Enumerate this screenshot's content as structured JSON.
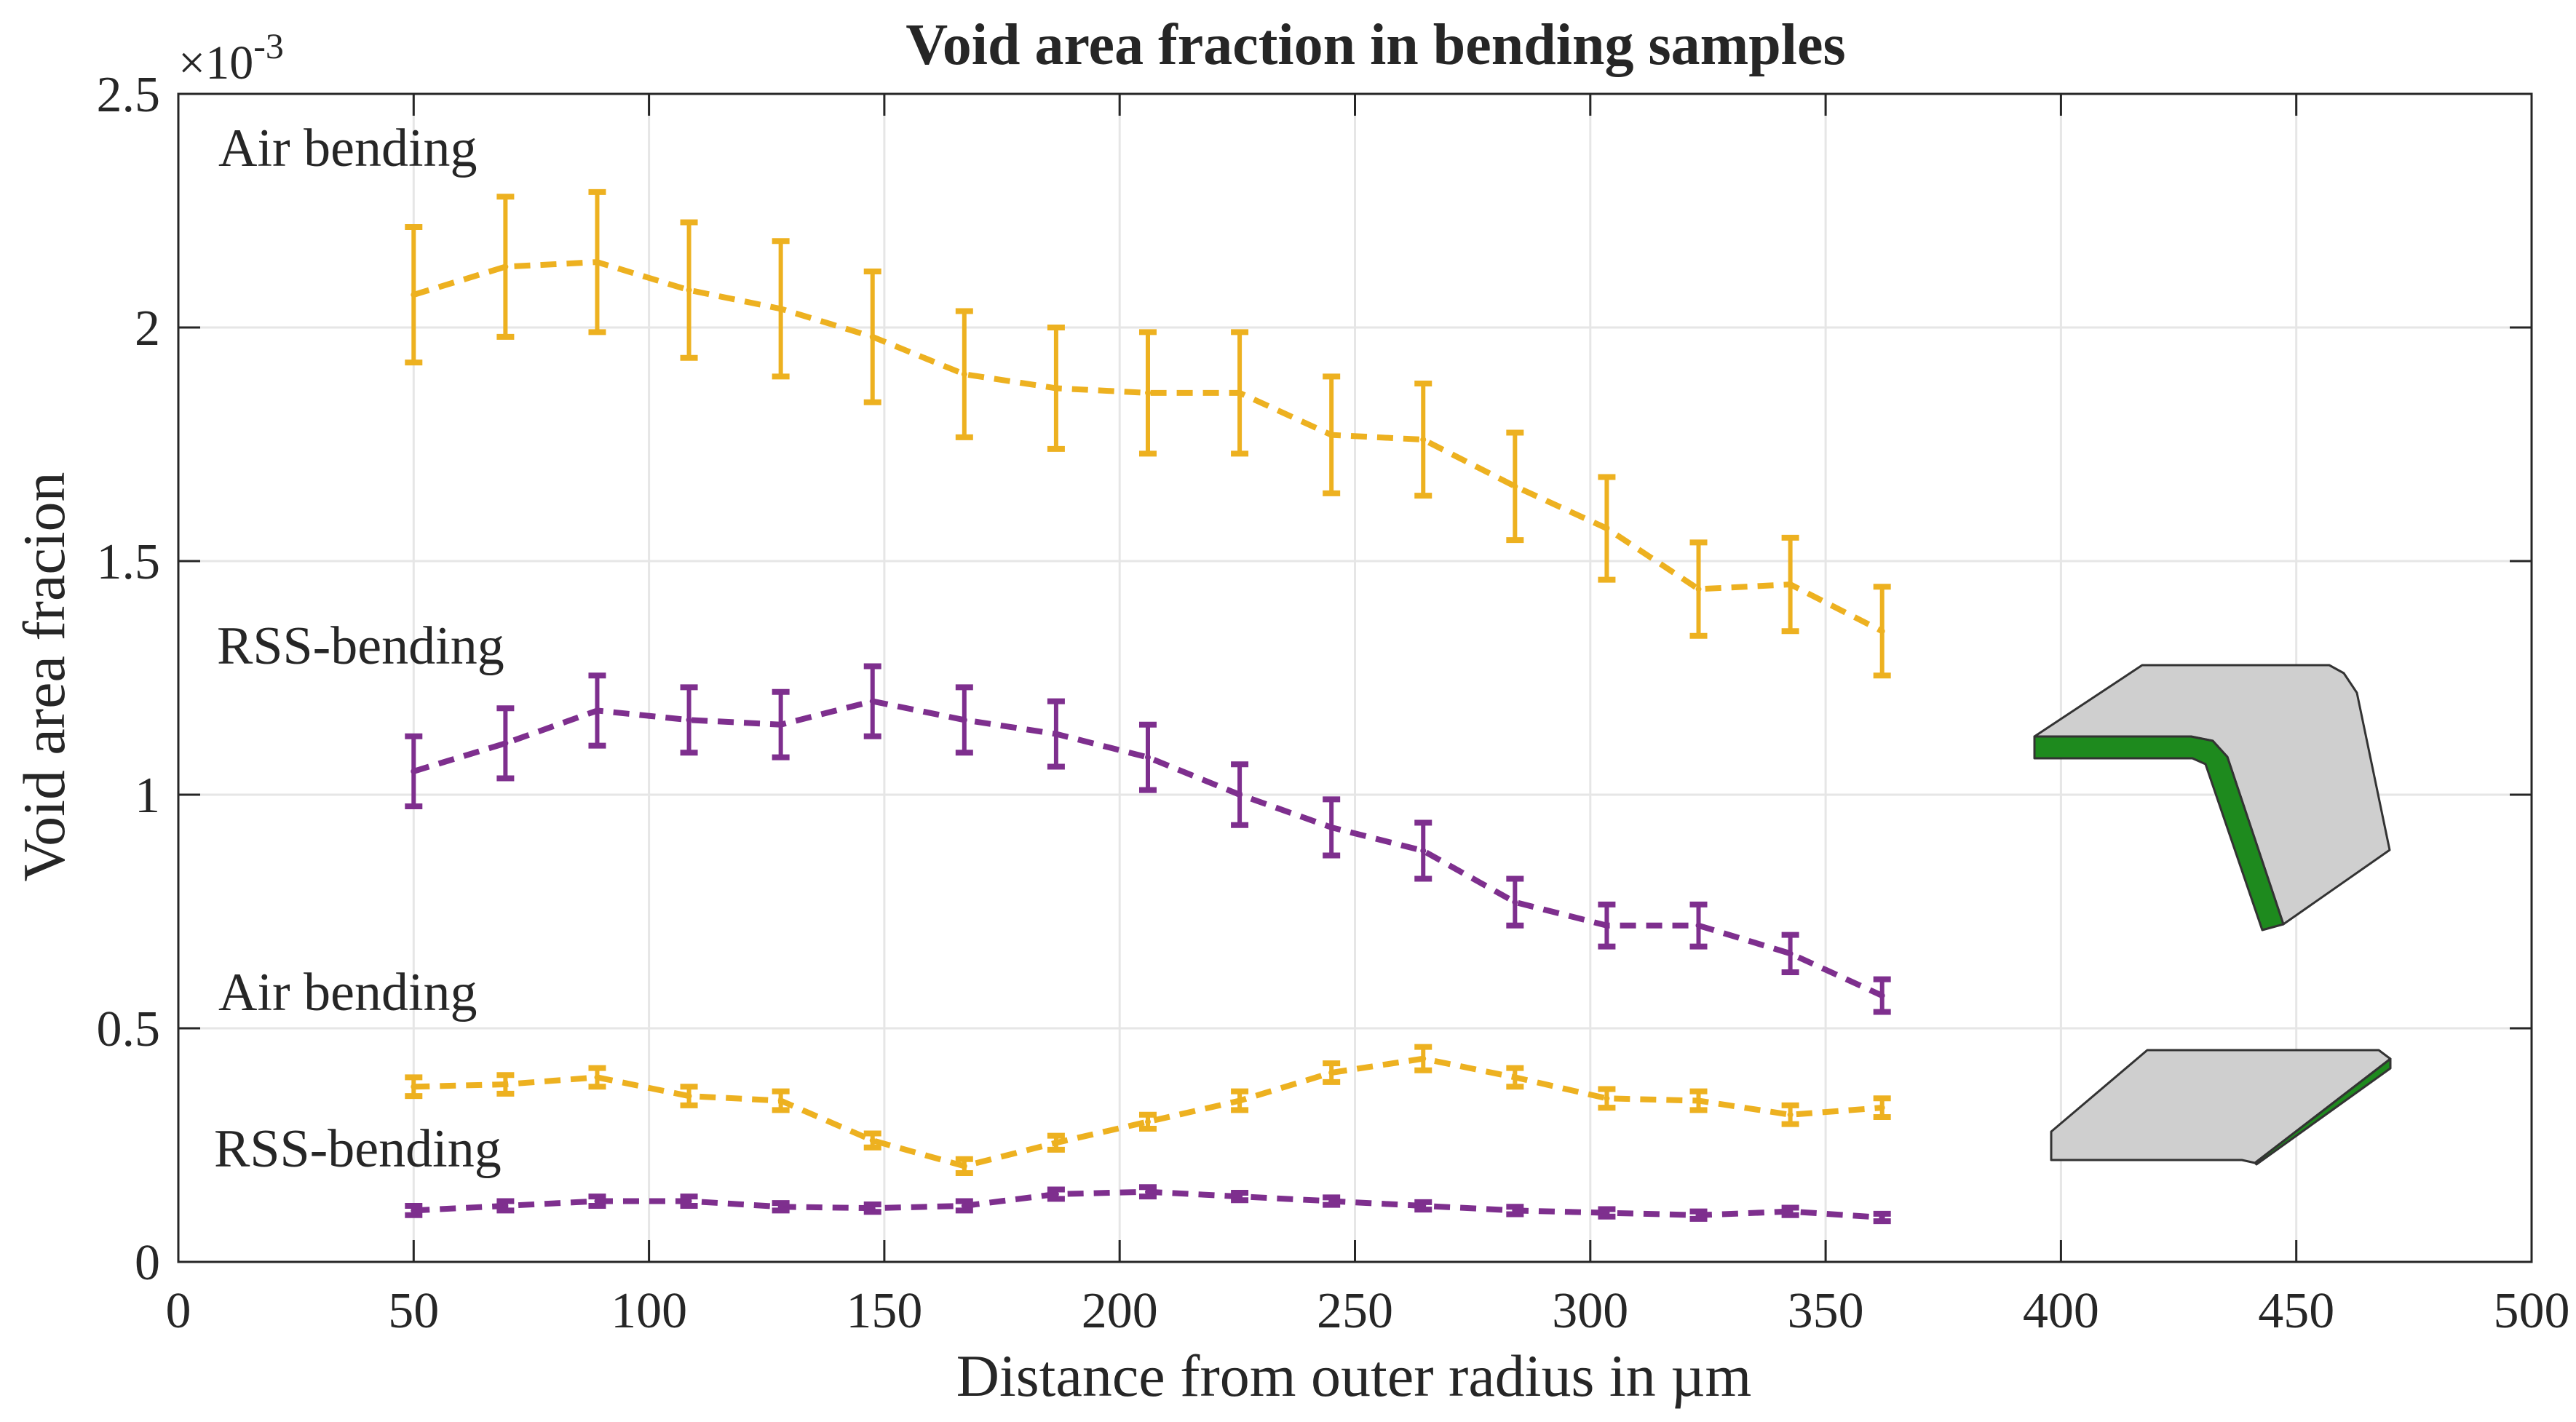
{
  "chart_data": {
    "type": "line",
    "title": "Void area fraction in bending samples",
    "xlabel": "Distance from outer radius in µm",
    "ylabel": "Void area fracion",
    "y_exponent_label": "×10",
    "y_exponent": "-3",
    "xlim": [
      0,
      500
    ],
    "ylim": [
      0,
      2.5
    ],
    "y_unit_scale": 0.001,
    "grid": true,
    "xticks": [
      "0",
      "50",
      "100",
      "150",
      "200",
      "250",
      "300",
      "350",
      "400",
      "450",
      "500"
    ],
    "yticks": [
      "0",
      "0.5",
      "1",
      "1.5",
      "2",
      "2.5"
    ],
    "x": [
      50,
      69.5,
      89,
      108.5,
      128,
      147.5,
      167,
      186.5,
      206,
      225.5,
      245,
      264.5,
      284,
      303.5,
      323,
      342.5,
      362
    ],
    "series": [
      {
        "name": "Air bending (upper)",
        "color": "#EDB120",
        "label": "Air bending",
        "values": [
          2.07,
          2.13,
          2.14,
          2.08,
          2.04,
          1.98,
          1.9,
          1.87,
          1.86,
          1.86,
          1.77,
          1.76,
          1.66,
          1.57,
          1.44,
          1.45,
          1.35
        ],
        "errors": [
          0.145,
          0.15,
          0.15,
          0.145,
          0.145,
          0.14,
          0.135,
          0.13,
          0.13,
          0.13,
          0.125,
          0.12,
          0.115,
          0.11,
          0.1,
          0.1,
          0.095
        ]
      },
      {
        "name": "RSS-bending (upper)",
        "color": "#7E2F8E",
        "label": "RSS-bending",
        "values": [
          1.05,
          1.11,
          1.18,
          1.16,
          1.15,
          1.2,
          1.16,
          1.13,
          1.08,
          1.0,
          0.93,
          0.88,
          0.77,
          0.72,
          0.72,
          0.66,
          0.57
        ],
        "errors": [
          0.075,
          0.075,
          0.075,
          0.07,
          0.07,
          0.075,
          0.07,
          0.07,
          0.07,
          0.065,
          0.06,
          0.06,
          0.05,
          0.045,
          0.045,
          0.04,
          0.035
        ]
      },
      {
        "name": "Air bending (lower)",
        "color": "#EDB120",
        "label": "Air bending",
        "values": [
          0.375,
          0.38,
          0.395,
          0.355,
          0.345,
          0.26,
          0.205,
          0.255,
          0.3,
          0.345,
          0.405,
          0.435,
          0.395,
          0.35,
          0.345,
          0.315,
          0.33
        ],
        "errors": [
          0.02,
          0.02,
          0.02,
          0.02,
          0.02,
          0.015,
          0.015,
          0.015,
          0.015,
          0.02,
          0.02,
          0.025,
          0.02,
          0.02,
          0.02,
          0.02,
          0.02
        ]
      },
      {
        "name": "RSS-bending (lower)",
        "color": "#7E2F8E",
        "label": "RSS-bending",
        "values": [
          0.11,
          0.12,
          0.13,
          0.13,
          0.118,
          0.115,
          0.12,
          0.145,
          0.15,
          0.14,
          0.13,
          0.12,
          0.11,
          0.105,
          0.1,
          0.108,
          0.095
        ],
        "errors": [
          0.01,
          0.01,
          0.01,
          0.01,
          0.008,
          0.008,
          0.01,
          0.01,
          0.01,
          0.008,
          0.008,
          0.008,
          0.008,
          0.008,
          0.008,
          0.008,
          0.008
        ]
      }
    ]
  }
}
